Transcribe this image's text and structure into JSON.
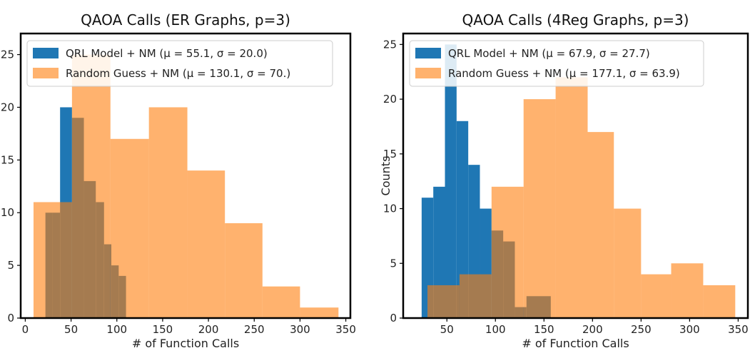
{
  "chart_data": [
    {
      "type": "histogram",
      "title": "QAOA Calls (ER Graphs, p=3)",
      "xlabel": "# of Function Calls",
      "ylabel": "",
      "xlim": [
        -5,
        355
      ],
      "ylim": [
        0,
        27
      ],
      "xticks": [
        0,
        50,
        100,
        150,
        200,
        250,
        300,
        350
      ],
      "yticks": [
        0,
        5,
        10,
        15,
        20,
        25
      ],
      "legend_position": "top-left",
      "series": [
        {
          "name": "QRL Model + NM (",
          "stat": "μ = 55.1, σ = 20.0)",
          "color": "#1f77b4",
          "bins": [
            {
              "x0": 22,
              "x1": 30,
              "count": 10
            },
            {
              "x0": 30,
              "x1": 38,
              "count": 10
            },
            {
              "x0": 38,
              "x1": 51,
              "count": 20
            },
            {
              "x0": 51,
              "x1": 64,
              "count": 19
            },
            {
              "x0": 64,
              "x1": 77,
              "count": 13
            },
            {
              "x0": 77,
              "x1": 86,
              "count": 11
            },
            {
              "x0": 86,
              "x1": 94,
              "count": 7
            },
            {
              "x0": 94,
              "x1": 102,
              "count": 5
            },
            {
              "x0": 102,
              "x1": 110,
              "count": 4
            }
          ]
        },
        {
          "name": "Random Guess + NM (",
          "stat": "μ = 130.1, σ = 70.)",
          "color": "#ff7f0e",
          "bins": [
            {
              "x0": 9,
              "x1": 51,
              "count": 11
            },
            {
              "x0": 51,
              "x1": 93,
              "count": 25
            },
            {
              "x0": 93,
              "x1": 135,
              "count": 17
            },
            {
              "x0": 135,
              "x1": 177,
              "count": 20
            },
            {
              "x0": 177,
              "x1": 218,
              "count": 14
            },
            {
              "x0": 218,
              "x1": 259,
              "count": 9
            },
            {
              "x0": 259,
              "x1": 300,
              "count": 3
            },
            {
              "x0": 300,
              "x1": 342,
              "count": 1
            }
          ]
        }
      ]
    },
    {
      "type": "histogram",
      "title": "QAOA Calls (4Reg Graphs, p=3)",
      "xlabel": "# of Function Calls",
      "ylabel": "Counts",
      "xlim": [
        5,
        360
      ],
      "ylim": [
        0,
        26
      ],
      "xticks": [
        50,
        100,
        150,
        200,
        250,
        300,
        350
      ],
      "yticks": [
        0,
        5,
        10,
        15,
        20,
        25
      ],
      "legend_position": "top-left",
      "series": [
        {
          "name": "QRL Model + NM (",
          "stat": "μ = 67.9, σ = 27.7)",
          "color": "#1f77b4",
          "bins": [
            {
              "x0": 24,
              "x1": 36,
              "count": 11
            },
            {
              "x0": 36,
              "x1": 48,
              "count": 12
            },
            {
              "x0": 48,
              "x1": 60,
              "count": 25
            },
            {
              "x0": 60,
              "x1": 72,
              "count": 18
            },
            {
              "x0": 72,
              "x1": 84,
              "count": 14
            },
            {
              "x0": 84,
              "x1": 96,
              "count": 10
            },
            {
              "x0": 96,
              "x1": 108,
              "count": 8
            },
            {
              "x0": 108,
              "x1": 120,
              "count": 7
            },
            {
              "x0": 120,
              "x1": 132,
              "count": 1
            },
            {
              "x0": 132,
              "x1": 157,
              "count": 2
            }
          ]
        },
        {
          "name": "Random Guess + NM (",
          "stat": "μ = 177.1, σ = 63.9)",
          "color": "#ff7f0e",
          "bins": [
            {
              "x0": 30,
              "x1": 63,
              "count": 3
            },
            {
              "x0": 63,
              "x1": 96,
              "count": 4
            },
            {
              "x0": 96,
              "x1": 129,
              "count": 12
            },
            {
              "x0": 129,
              "x1": 162,
              "count": 20
            },
            {
              "x0": 162,
              "x1": 195,
              "count": 22
            },
            {
              "x0": 195,
              "x1": 222,
              "count": 17
            },
            {
              "x0": 222,
              "x1": 250,
              "count": 10
            },
            {
              "x0": 250,
              "x1": 281,
              "count": 4
            },
            {
              "x0": 281,
              "x1": 314,
              "count": 5
            },
            {
              "x0": 314,
              "x1": 347,
              "count": 3
            }
          ]
        }
      ]
    }
  ]
}
